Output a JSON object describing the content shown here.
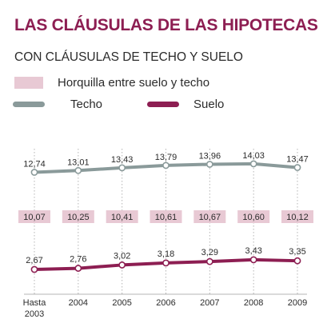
{
  "title": "LAS CLÁUSULAS DE LAS HIPOTECAS",
  "subtitle": "CON CLÁUSULAS DE TECHO Y SUELO",
  "legend": {
    "range_label": "Horquilla entre suelo y techo",
    "techo_label": "Techo",
    "suelo_label": "Suelo"
  },
  "colors": {
    "title": "#8d1e52",
    "techo": "#8a9a9a",
    "suelo": "#8d1e52",
    "range": "#e8c9d4",
    "grid": "#b5b5b5"
  },
  "chart_data": {
    "type": "line",
    "categories": [
      [
        "Hasta",
        "2003"
      ],
      [
        "2004"
      ],
      [
        "2005"
      ],
      [
        "2006"
      ],
      [
        "2007"
      ],
      [
        "2008"
      ],
      [
        "2009"
      ]
    ],
    "series": [
      {
        "name": "Techo",
        "values": [
          12.74,
          13.01,
          13.43,
          13.79,
          13.96,
          14.03,
          13.47
        ],
        "labels": [
          "12,74",
          "13,01",
          "13,43",
          "13,79",
          "13,96",
          "14,03",
          "13,47"
        ]
      },
      {
        "name": "Suelo",
        "values": [
          2.67,
          2.76,
          3.02,
          3.18,
          3.29,
          3.43,
          3.35
        ],
        "labels": [
          "2,67",
          "2,76",
          "3,02",
          "3,18",
          "3,29",
          "3,43",
          "3,35"
        ]
      },
      {
        "name": "Horquilla entre suelo y techo",
        "values": [
          10.07,
          10.25,
          10.41,
          10.61,
          10.67,
          10.6,
          10.12
        ],
        "labels": [
          "10,07",
          "10,25",
          "10,41",
          "10,61",
          "10,67",
          "10,60",
          "10,12"
        ]
      }
    ],
    "grid": "vertical-dotted",
    "legend": "top-left"
  }
}
